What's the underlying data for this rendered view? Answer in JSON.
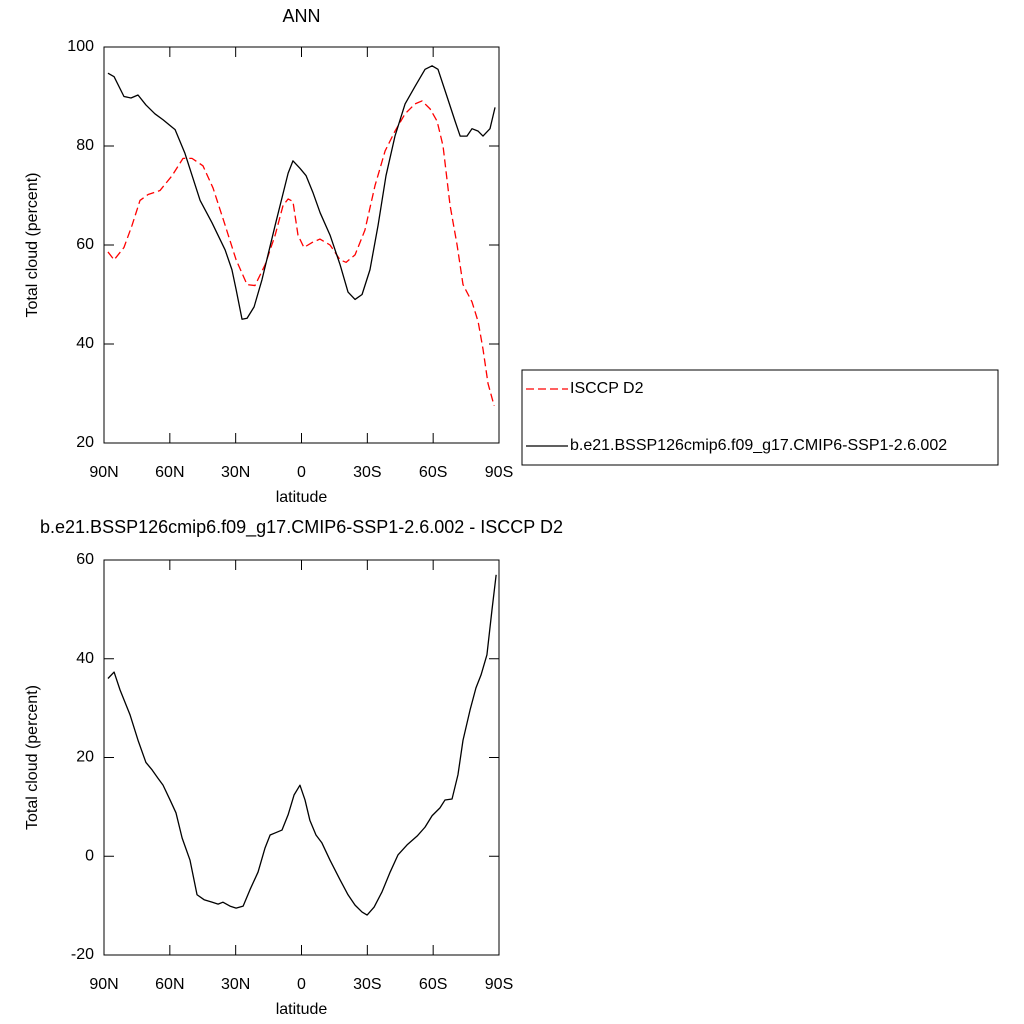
{
  "chart_data": [
    {
      "type": "line",
      "title": "ANN",
      "x_label": "latitude",
      "y_label": "Total cloud (percent)",
      "xlim": [
        90,
        -90
      ],
      "xticks": [
        {
          "value": 90,
          "label": "90N"
        },
        {
          "value": 60,
          "label": "60N"
        },
        {
          "value": 30,
          "label": "30N"
        },
        0,
        {
          "value": -30,
          "label": "30S"
        },
        {
          "value": -60,
          "label": "60S"
        },
        {
          "value": -90,
          "label": "90S"
        }
      ],
      "ylim": [
        20,
        100
      ],
      "yticks": [
        20,
        40,
        60,
        80,
        100
      ],
      "legend": "outside-right",
      "series": [
        {
          "name": "ISCCP D2",
          "color": "#ff0000",
          "dashed": true,
          "x": [
            88.2,
            85.4,
            80.9,
            77.2,
            73.6,
            69.9,
            64.5,
            59,
            54,
            49.9,
            44.9,
            40.3,
            34.8,
            29.8,
            24.8,
            21.2,
            16.6,
            12,
            8.4,
            6.1,
            3.9,
            1.6,
            -1.1,
            -4.8,
            -8.4,
            -13,
            -17.6,
            -20.3,
            -24.4,
            -28.9,
            -33.5,
            -38.1,
            -42.6,
            -47.2,
            -51.7,
            -54.9,
            -58.6,
            -61.8,
            -64.5,
            -67.7,
            -70.9,
            -73.6,
            -77.7,
            -80.5,
            -82.7,
            -85,
            -87.8
          ],
          "values": [
            58.6,
            57,
            59.5,
            64,
            69,
            70.2,
            71,
            74,
            77.5,
            77.5,
            76,
            71.5,
            64,
            57,
            52,
            51.8,
            56,
            62,
            68,
            69.3,
            68.8,
            62,
            59.5,
            60.5,
            61.2,
            60,
            57,
            56.5,
            58,
            63,
            72,
            79,
            83,
            86.5,
            88.5,
            89.1,
            87.5,
            85,
            80,
            68,
            60,
            52,
            48.5,
            44.5,
            39,
            32,
            27.5
          ]
        },
        {
          "name": "b.e21.BSSP126cmip6.f09_g17.CMIP6-SSP1-2.6.002",
          "color": "#000000",
          "dashed": false,
          "x": [
            88.2,
            85.4,
            80.9,
            77.7,
            74.5,
            70.9,
            66.8,
            63.1,
            57.6,
            53.1,
            46.2,
            40.8,
            34.8,
            31.7,
            29.8,
            27.1,
            24.8,
            21.6,
            18,
            12,
            6.1,
            3.9,
            0.7,
            -2.1,
            -5.3,
            -8.5,
            -13,
            -17.6,
            -21.2,
            -24.4,
            -27.6,
            -31.2,
            -34.9,
            -38.5,
            -42.6,
            -47.2,
            -51.7,
            -56.3,
            -59.5,
            -62.2,
            -66.3,
            -70,
            -72.3,
            -75.4,
            -77.7,
            -80.5,
            -82.7,
            -85.9,
            -88.2
          ],
          "values": [
            94.7,
            94,
            90,
            89.7,
            90.3,
            88.3,
            86.5,
            85.3,
            83.3,
            78.5,
            69,
            64.5,
            59,
            55,
            51,
            45,
            45.2,
            47.5,
            53,
            64,
            74.5,
            77,
            75.5,
            74,
            70.5,
            66.5,
            62,
            56,
            50.5,
            49,
            50,
            55,
            64,
            74,
            82,
            88.5,
            92,
            95.5,
            96.2,
            95.5,
            90,
            85,
            82,
            82,
            83.5,
            83,
            82,
            83.5,
            87.8
          ]
        }
      ]
    },
    {
      "type": "line",
      "title": "b.e21.BSSP126cmip6.f09_g17.CMIP6-SSP1-2.6.002 - ISCCP D2",
      "x_label": "latitude",
      "y_label": "Total cloud (percent)",
      "xlim": [
        90,
        -90
      ],
      "xticks": [
        {
          "value": 90,
          "label": "90N"
        },
        {
          "value": 60,
          "label": "60N"
        },
        {
          "value": 30,
          "label": "30N"
        },
        0,
        {
          "value": -30,
          "label": "30S"
        },
        {
          "value": -60,
          "label": "60S"
        },
        {
          "value": -90,
          "label": "90S"
        }
      ],
      "ylim": [
        -20,
        60
      ],
      "yticks": [
        -20,
        0,
        20,
        40,
        60
      ],
      "color": "#000000",
      "x": [
        88.2,
        85.4,
        82.7,
        78.1,
        74.5,
        70.9,
        68.1,
        65.4,
        63.1,
        59.9,
        57.2,
        54.4,
        50.8,
        47.6,
        44.4,
        40.8,
        38,
        35.8,
        32.6,
        29.8,
        26.6,
        23.5,
        19.8,
        16.6,
        14.3,
        11.6,
        8.9,
        6.1,
        3.4,
        0.7,
        -1.6,
        -3.8,
        -6.6,
        -9.3,
        -13,
        -17.6,
        -21.2,
        -24.4,
        -27.6,
        -29.9,
        -33.1,
        -36.7,
        -40.4,
        -44,
        -48.1,
        -52.7,
        -56.3,
        -59.5,
        -63.1,
        -65.4,
        -68.6,
        -71.3,
        -73.6,
        -76.8,
        -79.5,
        -81.8,
        -84.5,
        -86.8,
        -88.7
      ],
      "values": [
        36,
        37.3,
        33.7,
        28.6,
        23.5,
        19,
        17.5,
        15.8,
        14.4,
        11.4,
        8.8,
        3.7,
        -0.8,
        -7.8,
        -8.8,
        -9.3,
        -9.7,
        -9.3,
        -10.1,
        -10.5,
        -10.1,
        -6.8,
        -3.2,
        1.7,
        4.3,
        4.8,
        5.3,
        8.4,
        12.4,
        14.4,
        11.4,
        7.3,
        4.3,
        2.7,
        -0.8,
        -4.8,
        -7.8,
        -9.9,
        -11.3,
        -11.9,
        -10.3,
        -7.2,
        -3.2,
        0.3,
        2.3,
        4.1,
        5.9,
        8.2,
        9.8,
        11.4,
        11.6,
        16.5,
        23.5,
        29.6,
        34.1,
        36.7,
        40.8,
        49.9,
        57
      ]
    }
  ]
}
